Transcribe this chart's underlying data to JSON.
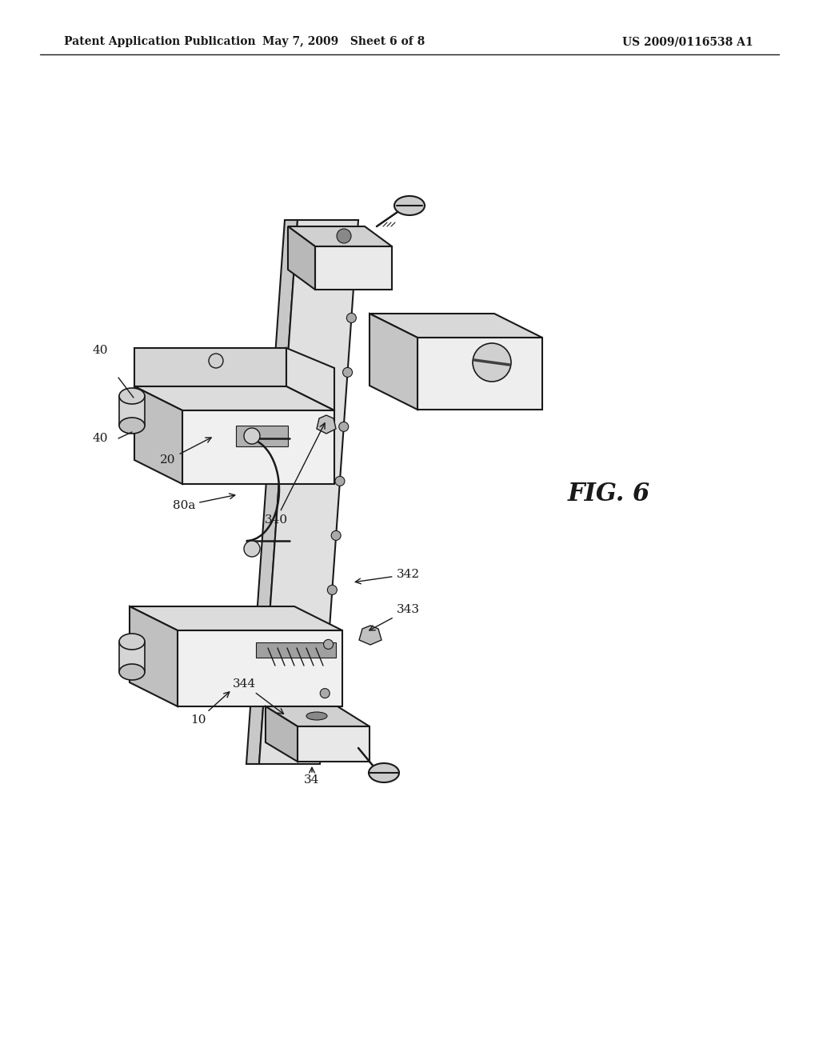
{
  "bg_color": "#ffffff",
  "line_color": "#1a1a1a",
  "header_left": "Patent Application Publication",
  "header_mid": "May 7, 2009   Sheet 6 of 8",
  "header_right": "US 2009/0116538 A1",
  "fig_label": "FIG. 6",
  "header_fontsize": 10,
  "label_fontsize": 11,
  "fig_label_fontsize": 22
}
